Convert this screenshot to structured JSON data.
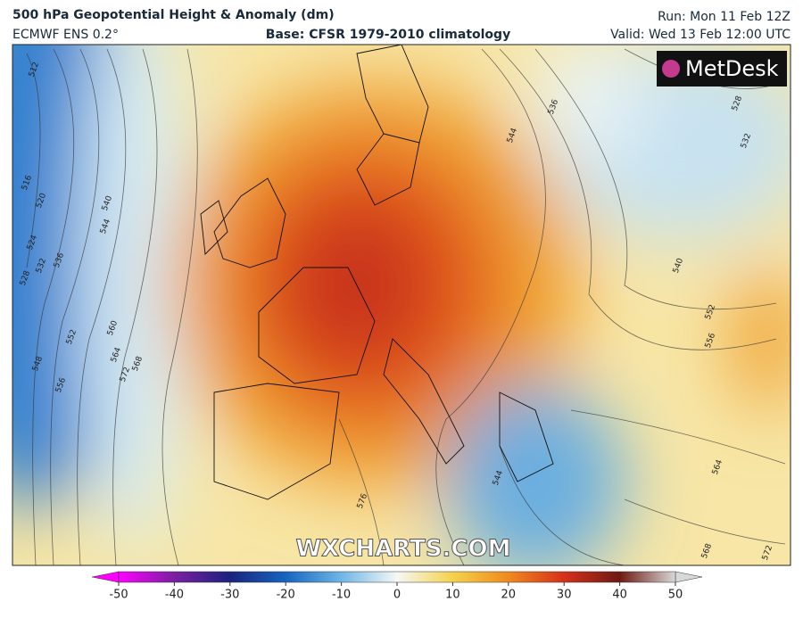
{
  "header": {
    "title": "500 hPa Geopotential Height & Anomaly (dm)",
    "model": "ECMWF ENS 0.2°",
    "base": "Base: CFSR 1979-2010 climatology",
    "run": "Run: Mon 11 Feb 12Z",
    "valid": "Valid: Wed 13 Feb 12:00 UTC"
  },
  "map": {
    "logo": "MetDesk",
    "watermark": "WXCHARTS.COM",
    "contour_labels": [
      "512",
      "516",
      "520",
      "524",
      "528",
      "532",
      "536",
      "540",
      "544",
      "548",
      "552",
      "556",
      "560",
      "564",
      "568",
      "572",
      "576",
      "544",
      "528",
      "532",
      "540",
      "552",
      "556",
      "564",
      "568",
      "572",
      "544",
      "536"
    ]
  },
  "colorbar": {
    "ticks": [
      -50,
      -40,
      -30,
      -20,
      -10,
      0,
      10,
      20,
      30,
      40,
      50
    ],
    "colors": [
      "#ff00ff",
      "#7a1fa2",
      "#1a237e",
      "#1565c0",
      "#6fb6e6",
      "#f5f8f5",
      "#f5d24a",
      "#f08a1e",
      "#d6301a",
      "#6e1a12",
      "#d8d8d8"
    ]
  }
}
